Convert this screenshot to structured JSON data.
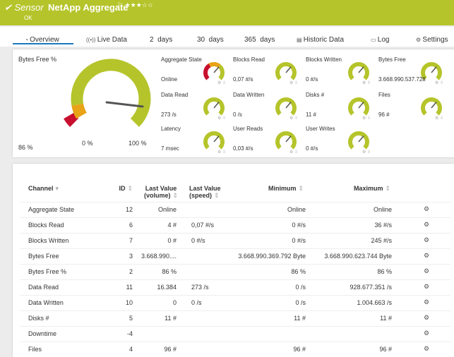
{
  "header": {
    "prefix": "Sensor",
    "title": "NetApp Aggregate",
    "status": "OK"
  },
  "tabs": [
    "Overview",
    "Live Data",
    "2  days",
    "30  days",
    "365  days",
    "Historic Data",
    "Log",
    "Settings"
  ],
  "main_gauge": {
    "label": "Bytes Free %",
    "value": "86 %",
    "min": "0 %",
    "max": "100 %"
  },
  "gauges": [
    {
      "label": "Aggregate State",
      "value": "Online"
    },
    {
      "label": "Blocks Read",
      "value": "0,07 #/s"
    },
    {
      "label": "Blocks Written",
      "value": "0 #/s"
    },
    {
      "label": "Bytes Free",
      "value": "3.668.990.537.728 "
    },
    {
      "label": "Data Read",
      "value": "273 /s"
    },
    {
      "label": "Data Written",
      "value": "0 /s"
    },
    {
      "label": "Disks #",
      "value": "11 #"
    },
    {
      "label": "Files",
      "value": "96 #"
    },
    {
      "label": "Latency",
      "value": "7 msec"
    },
    {
      "label": "User Reads",
      "value": "0,03 #/s"
    },
    {
      "label": "User Writes",
      "value": "0 #/s"
    }
  ],
  "table": {
    "columns": [
      "Channel",
      "ID",
      "Last Value (volume)",
      "Last Value (speed)",
      "Minimum",
      "Maximum"
    ],
    "rows": [
      [
        "Aggregate State",
        12,
        "Online",
        null,
        "Online",
        "Online"
      ],
      [
        "Blocks Read",
        6,
        "4 #",
        "0,07 #/s",
        "0 #/s",
        "36 #/s"
      ],
      [
        "Blocks Written",
        7,
        "0 #",
        "0 #/s",
        "0 #/s",
        "245 #/s"
      ],
      [
        "Bytes Free",
        3,
        "3.668.990....",
        null,
        "3.668.990.369.792 Byte",
        "3.668.990.623.744 Byte"
      ],
      [
        "Bytes Free %",
        2,
        "86 %",
        null,
        "86 %",
        "86 %"
      ],
      [
        "Data Read",
        11,
        "16.384",
        "273 /s",
        "0 /s",
        "928.677.351 /s"
      ],
      [
        "Data Written",
        10,
        "0",
        "0 /s",
        "0 /s",
        "1.004.663 /s"
      ],
      [
        "Disks #",
        5,
        "11 #",
        null,
        "11 #",
        "11 #"
      ],
      [
        "Downtime",
        -4,
        null,
        null,
        null,
        null
      ],
      [
        "Files",
        4,
        "96 #",
        null,
        "96 #",
        "96 #"
      ]
    ]
  }
}
